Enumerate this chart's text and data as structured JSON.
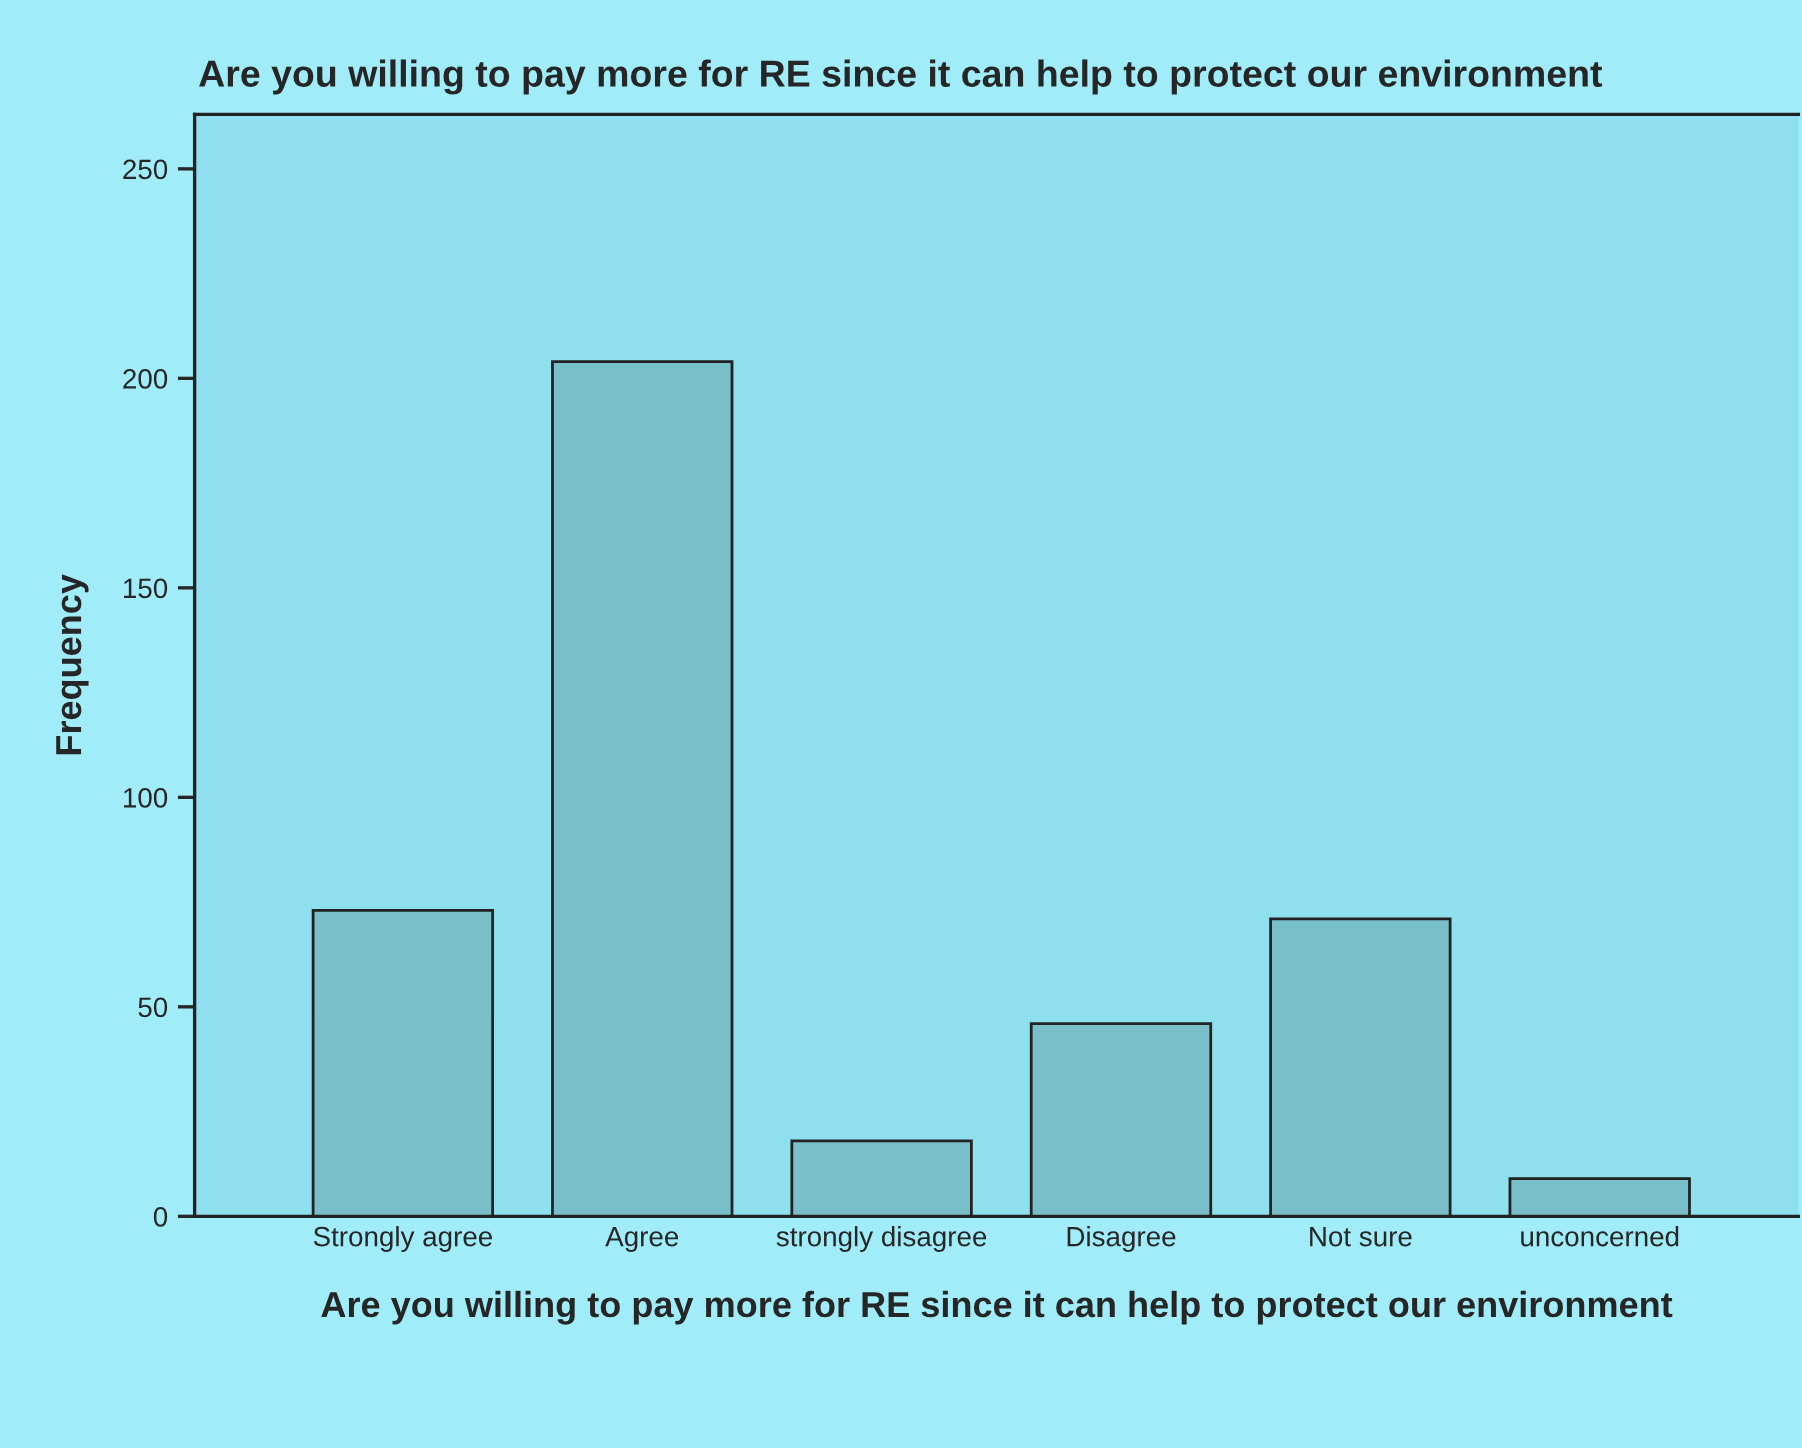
{
  "chart_data": {
    "type": "bar",
    "title": "Are you willing to pay more for RE since it can help to protect our environment",
    "xlabel": "Are you willing to pay more for RE since it can help to protect our environment",
    "ylabel": "Frequency",
    "categories": [
      "Strongly agree",
      "Agree",
      "strongly disagree",
      "Disagree",
      "Not sure",
      "unconcerned"
    ],
    "values": [
      73,
      204,
      18,
      46,
      71,
      9
    ],
    "color": "#79bfc9",
    "ylim": [
      0,
      263
    ],
    "yticks": [
      0,
      50,
      100,
      150,
      200,
      250
    ],
    "grid": false
  }
}
